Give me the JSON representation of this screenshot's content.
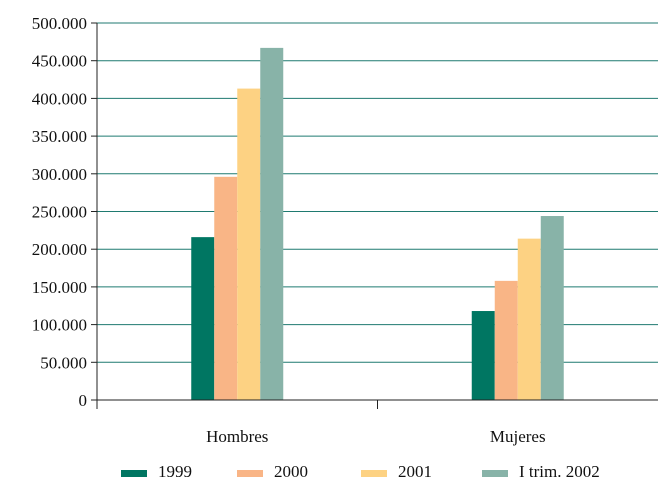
{
  "chart_data": {
    "type": "bar",
    "categories": [
      "Hombres",
      "Mujeres"
    ],
    "series": [
      {
        "name": "1999",
        "color": "#007662",
        "values": [
          216000,
          118000
        ]
      },
      {
        "name": "2000",
        "color": "#f9b586",
        "values": [
          296000,
          158000
        ]
      },
      {
        "name": "2001",
        "color": "#fdd283",
        "values": [
          413000,
          214000
        ]
      },
      {
        "name": "I trim. 2002",
        "color": "#88b3a8",
        "values": [
          467000,
          244000
        ]
      }
    ],
    "ylim": [
      0,
      500000
    ],
    "yticks": [
      0,
      50000,
      100000,
      150000,
      200000,
      250000,
      300000,
      350000,
      400000,
      450000,
      500000
    ],
    "ytick_labels": [
      "0",
      "50.000",
      "100.000",
      "150.000",
      "200.000",
      "250.000",
      "300.000",
      "350.000",
      "400.000",
      "450.000",
      "500.000"
    ],
    "grid": true,
    "grid_color": "#1f7a70",
    "legend_position": "bottom"
  }
}
